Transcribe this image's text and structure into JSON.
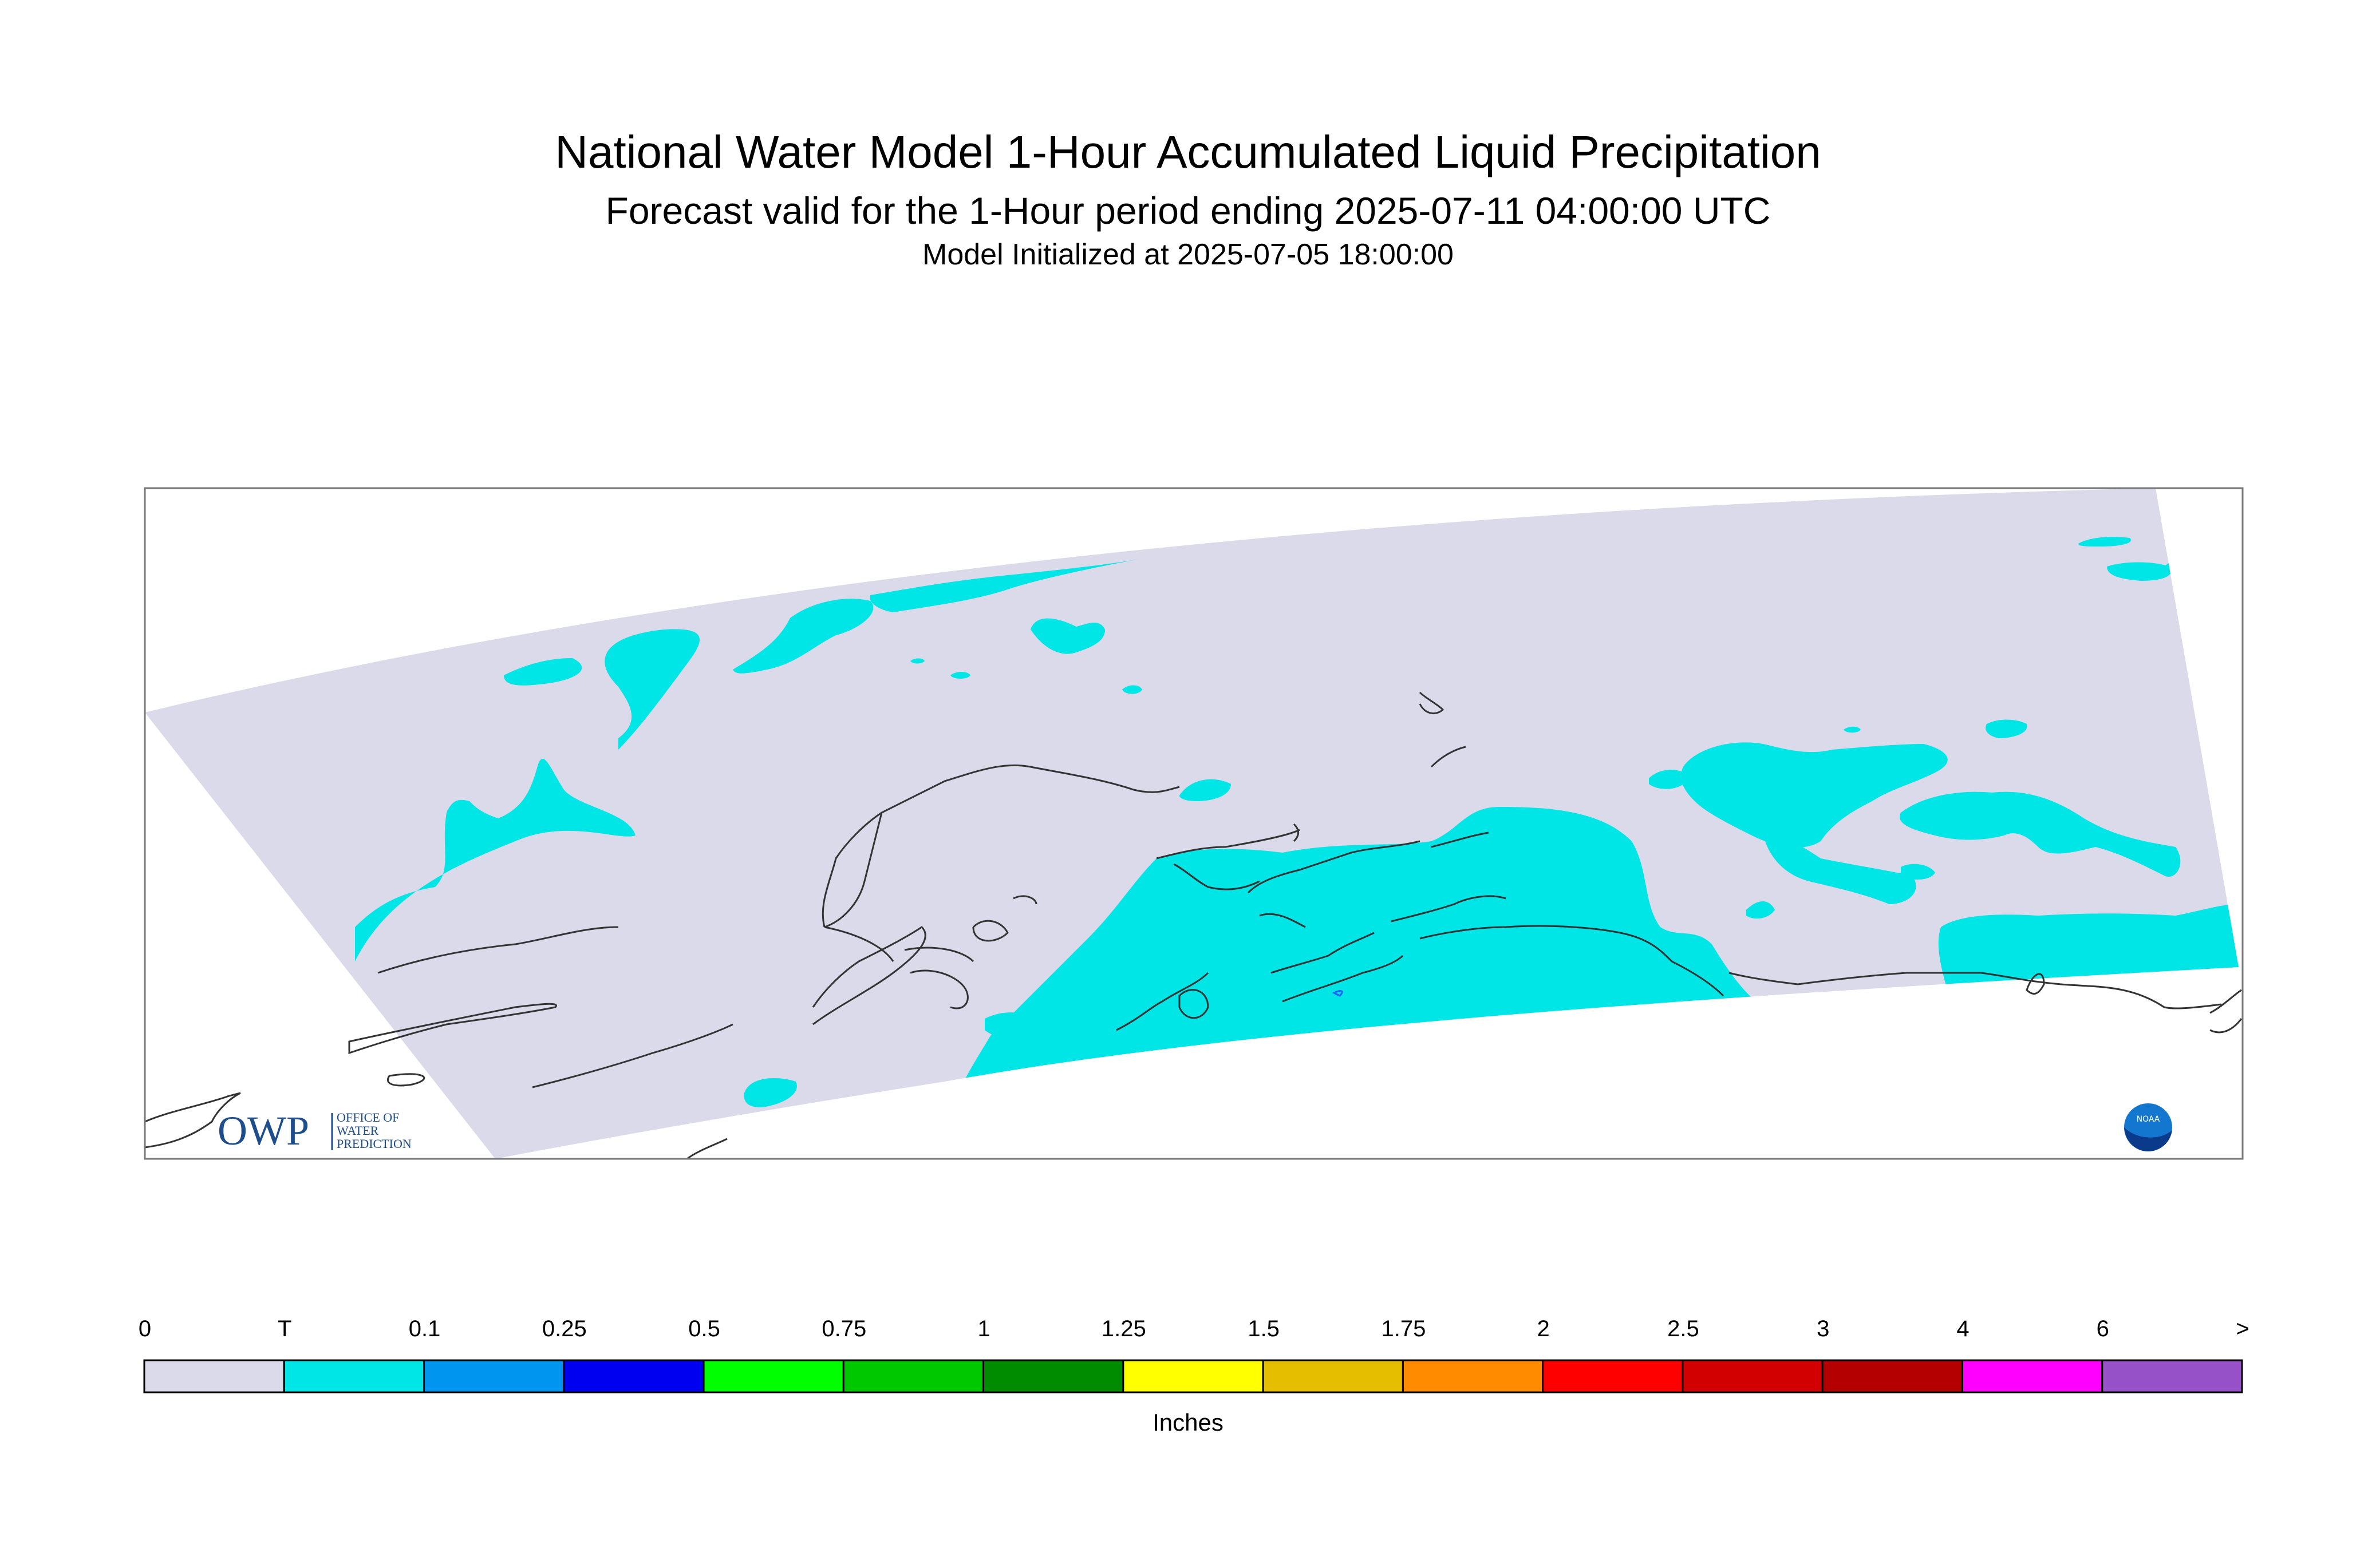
{
  "title": "National Water Model 1-Hour Accumulated Liquid Precipitation",
  "subtitle": "Forecast valid for the 1-Hour period ending 2025-07-11 04:00:00 UTC",
  "init_line": "Model Initialized at 2025-07-05 18:00:00",
  "logos": {
    "owp_text": "OWP",
    "owp_small": [
      "OFFICE OF",
      "WATER",
      "PREDICTION"
    ],
    "noaa_text": "NOAA"
  },
  "legend": {
    "units": "Inches",
    "labels": [
      "0",
      "T",
      "0.1",
      "0.25",
      "0.5",
      "0.75",
      "1",
      "1.25",
      "1.5",
      "1.75",
      "2",
      "2.5",
      "3",
      "4",
      "6",
      ">"
    ],
    "colors": [
      "#dadaea",
      "#00e5e5",
      "#0096f0",
      "#0000f0",
      "#00ff00",
      "#00c800",
      "#008c00",
      "#ffff00",
      "#e6be00",
      "#ff8c00",
      "#ff0000",
      "#d20000",
      "#b40000",
      "#ff00ff",
      "#9650c8"
    ]
  },
  "colors": {
    "domain_no_precip": "#dadaea",
    "trace": "#00e5e5",
    "coastline": "#333333"
  }
}
